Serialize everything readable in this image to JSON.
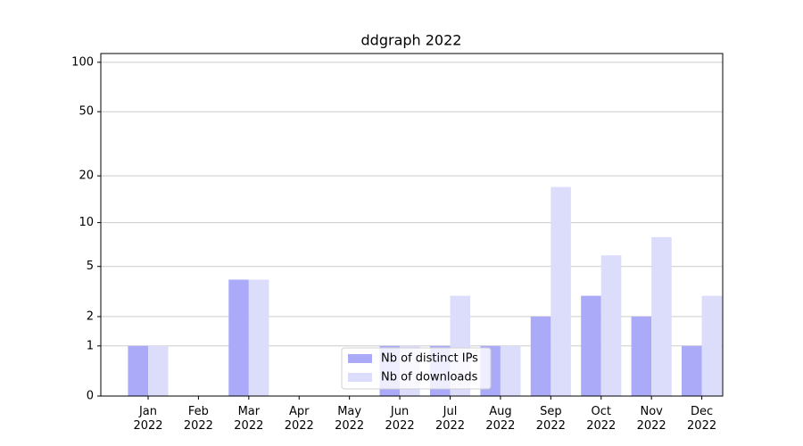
{
  "chart_data": {
    "type": "bar",
    "title": "ddgraph 2022",
    "categories": [
      "Jan\n2022",
      "Feb\n2022",
      "Mar\n2022",
      "Apr\n2022",
      "May\n2022",
      "Jun\n2022",
      "Jul\n2022",
      "Aug\n2022",
      "Sep\n2022",
      "Oct\n2022",
      "Nov\n2022",
      "Dec\n2022"
    ],
    "series": [
      {
        "name": "Nb of distinct IPs",
        "color": "#aaaaf8",
        "values": [
          1,
          0,
          4,
          0,
          0,
          1,
          1,
          1,
          2,
          3,
          2,
          1
        ]
      },
      {
        "name": "Nb of downloads",
        "color": "#dcdcfb",
        "values": [
          1,
          0,
          4,
          0,
          0,
          1,
          3,
          1,
          17,
          6,
          8,
          3
        ]
      }
    ],
    "yscale": "log1p",
    "ylim": [
      0,
      113
    ],
    "yticks": [
      0,
      1,
      2,
      5,
      10,
      20,
      50,
      100
    ],
    "grid": true,
    "legend": "lower center"
  }
}
